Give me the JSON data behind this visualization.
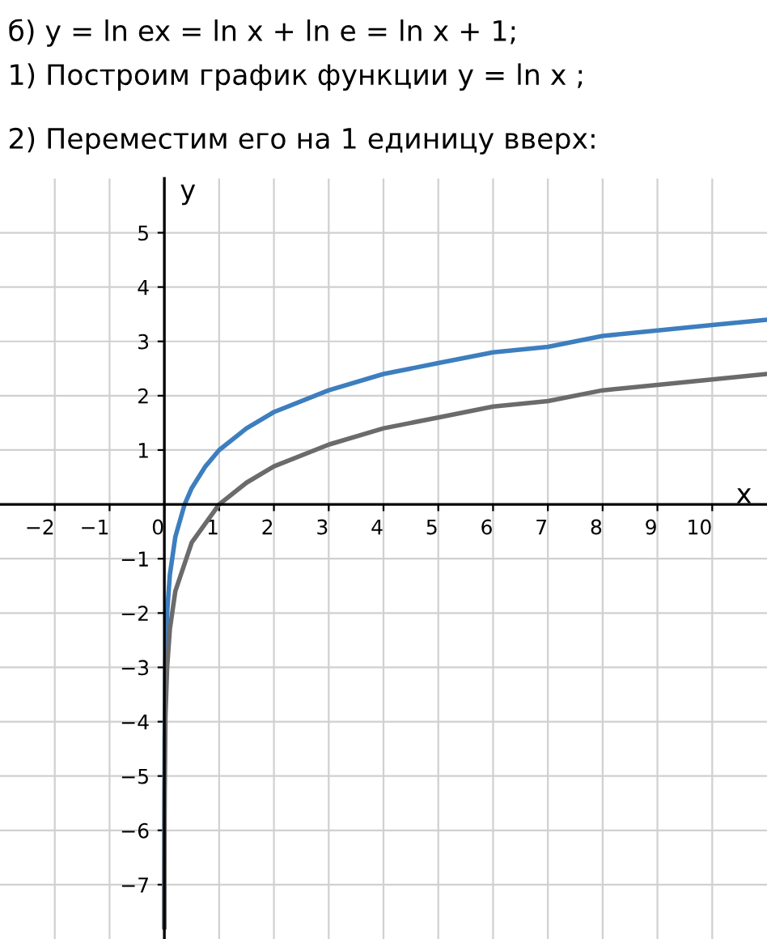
{
  "chart_data": {
    "type": "line",
    "title": "б) y = ln ex = ln x + ln e = ln x + 1;",
    "subtitle": "1) Построим график функции y = ln x ;",
    "annotations": [
      "2) Переместим его на 1 единицу вверх:"
    ],
    "xlabel": "x",
    "ylabel": "y",
    "xlim": [
      -3,
      11
    ],
    "ylim": [
      -8,
      6
    ],
    "xticks": [
      -2,
      -1,
      0,
      1,
      2,
      3,
      4,
      5,
      6,
      7,
      8,
      9,
      10
    ],
    "yticks": [
      -7,
      -6,
      -5,
      -4,
      -3,
      -2,
      -1,
      1,
      2,
      3,
      4,
      5
    ],
    "grid": true,
    "series": [
      {
        "color": "#3d7ebf",
        "x": [
          0.00015,
          0.001,
          0.005,
          0.02,
          0.05,
          0.1,
          0.2,
          0.37,
          0.5,
          0.75,
          1,
          1.5,
          2,
          3,
          4,
          5,
          6,
          7,
          8,
          9,
          10,
          11
        ],
        "values": [
          -7.8,
          -5.9,
          -4.3,
          -2.9,
          -2.0,
          -1.3,
          -0.6,
          0.0,
          0.3,
          0.7,
          1.0,
          1.4,
          1.7,
          2.1,
          2.4,
          2.6,
          2.8,
          2.9,
          3.1,
          3.2,
          3.3,
          3.4
        ]
      },
      {
        "color": "#6b6b6b",
        "x": [
          0.0004,
          0.001,
          0.005,
          0.02,
          0.05,
          0.1,
          0.2,
          0.5,
          1,
          1.5,
          2,
          3,
          4,
          5,
          6,
          7,
          8,
          9,
          10,
          11
        ],
        "values": [
          -7.8,
          -6.9,
          -5.3,
          -3.9,
          -3.0,
          -2.3,
          -1.6,
          -0.7,
          0.0,
          0.4,
          0.7,
          1.1,
          1.4,
          1.6,
          1.8,
          1.9,
          2.1,
          2.2,
          2.3,
          2.4
        ]
      }
    ]
  }
}
